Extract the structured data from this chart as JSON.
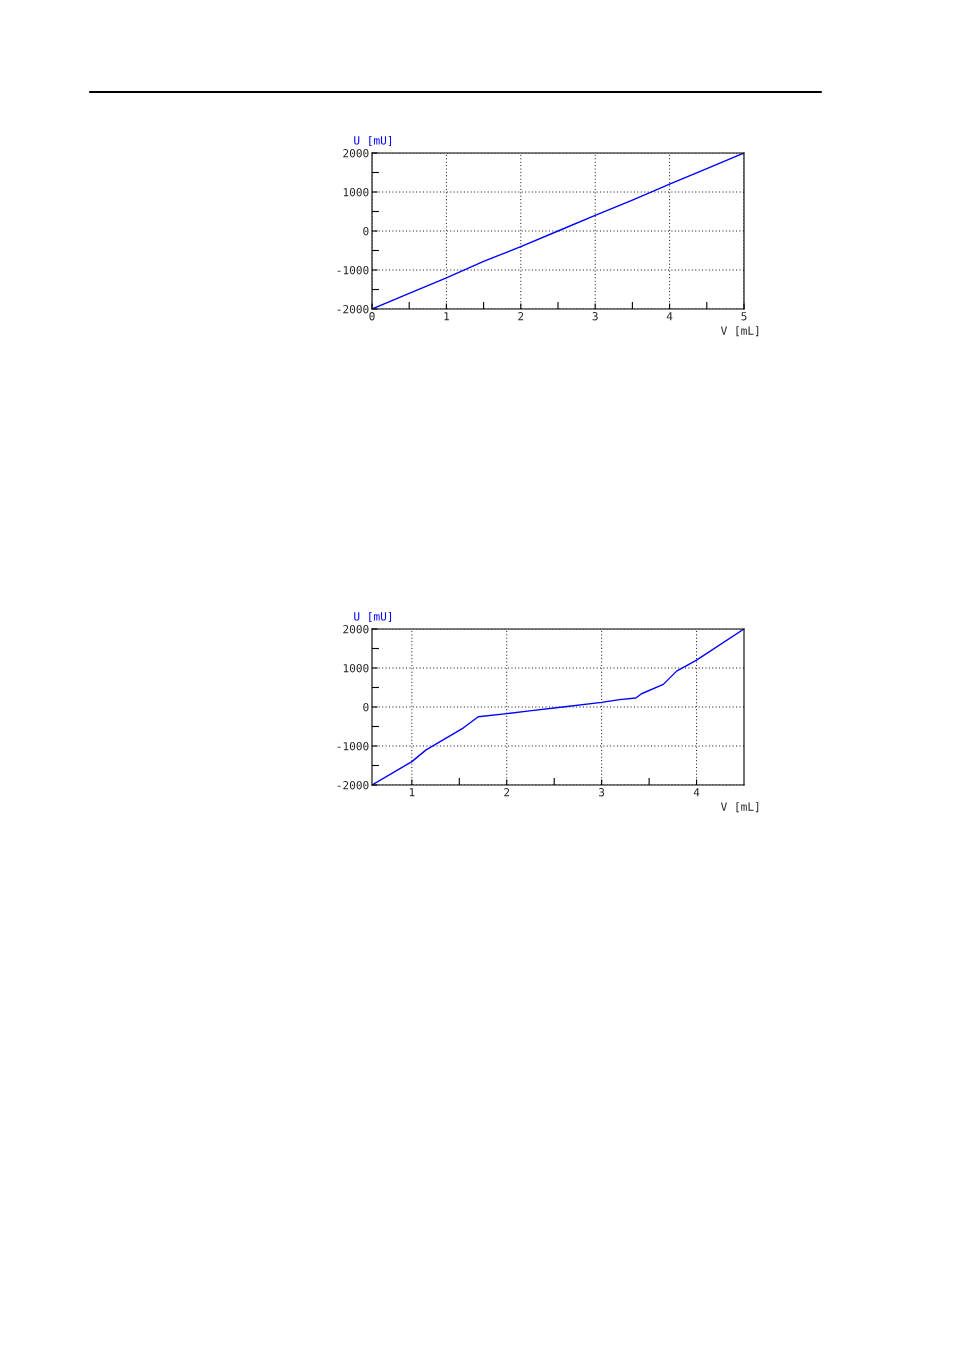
{
  "chart_data": [
    {
      "type": "line",
      "xlabel": "V [mL]",
      "ylabel": "U [mU]",
      "series": [
        {
          "color": "#0000ff",
          "x": [
            0,
            0.5,
            1,
            1.5,
            2,
            2.5,
            3,
            3.5,
            4,
            4.5,
            5
          ],
          "values": [
            -2000,
            -1600,
            -1200,
            -780,
            -400,
            0,
            400,
            790,
            1200,
            1600,
            2000
          ]
        }
      ],
      "xlim": [
        0,
        5
      ],
      "ylim": [
        -2000,
        2000
      ],
      "xticks": [
        0,
        {
          "value": 0.5,
          "label": null
        },
        1,
        {
          "value": 1.5,
          "label": null
        },
        2,
        {
          "value": 2.5,
          "label": null
        },
        3,
        {
          "value": 3.5,
          "label": null
        },
        4,
        {
          "value": 4.5,
          "label": null
        },
        5
      ],
      "yticks": [
        -2000,
        {
          "value": -1500,
          "label": null
        },
        -1000,
        {
          "value": -500,
          "label": null
        },
        0,
        {
          "value": 500,
          "label": null
        },
        1000,
        {
          "value": 1500,
          "label": null
        },
        2000
      ],
      "grid": true
    },
    {
      "type": "line",
      "xlabel": "V [mL]",
      "ylabel": "U [mU]",
      "series": [
        {
          "color": "#0000ff",
          "x": [
            0.58,
            1.0,
            1.15,
            1.54,
            1.7,
            2.0,
            2.24,
            2.59,
            3.0,
            3.19,
            3.36,
            3.42,
            3.65,
            3.79,
            4.0,
            4.5
          ],
          "values": [
            -2000,
            -1400,
            -1100,
            -540,
            -250,
            -170,
            -100,
            0,
            120,
            190,
            230,
            340,
            580,
            920,
            1200,
            2000
          ]
        }
      ],
      "xlim": [
        0.58,
        4.5
      ],
      "ylim": [
        -2000,
        2000
      ],
      "xticks": [
        1,
        {
          "value": 1.5,
          "label": null
        },
        2,
        {
          "value": 2.5,
          "label": null
        },
        3,
        {
          "value": 3.5,
          "label": null
        },
        4
      ],
      "yticks": [
        -2000,
        {
          "value": -1500,
          "label": null
        },
        -1000,
        {
          "value": -500,
          "label": null
        },
        0,
        {
          "value": 500,
          "label": null
        },
        1000,
        {
          "value": 1500,
          "label": null
        },
        2000
      ],
      "grid": true
    }
  ]
}
